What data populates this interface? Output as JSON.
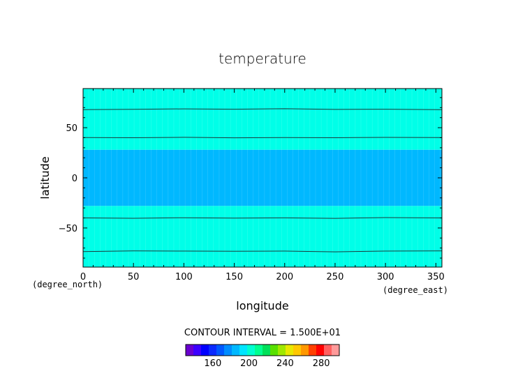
{
  "chart_data": {
    "type": "heatmap",
    "title": "temperature",
    "xlabel": "longitude",
    "ylabel": "latitude",
    "x_unit": "(degree_east)",
    "y_unit": "(degree_north)",
    "xlim": [
      0,
      356
    ],
    "ylim": [
      -89,
      89
    ],
    "x_ticks": [
      0,
      50,
      100,
      150,
      200,
      250,
      300,
      350
    ],
    "y_ticks": [
      -50,
      0,
      50
    ],
    "contour_interval_label": "CONTOUR INTERVAL = 1.500E+01",
    "contour_interval": 15,
    "bands": [
      {
        "lat_min": -89,
        "lat_max": -28,
        "color": "#00ffe8",
        "range": "210-225"
      },
      {
        "lat_min": -28,
        "lat_max": 28,
        "color": "#00b8ff",
        "range": "195-210"
      },
      {
        "lat_min": 28,
        "lat_max": 89,
        "color": "#00ffe8",
        "range": "210-225"
      }
    ],
    "contour_lines": [
      {
        "lat": -73,
        "points": [
          [
            0,
            -73.5
          ],
          [
            50,
            -72.8
          ],
          [
            100,
            -73.0
          ],
          [
            150,
            -73.2
          ],
          [
            200,
            -73.0
          ],
          [
            250,
            -73.8
          ],
          [
            300,
            -73.0
          ],
          [
            356,
            -72.8
          ]
        ]
      },
      {
        "lat": -40,
        "points": [
          [
            0,
            -40.0
          ],
          [
            50,
            -40.3
          ],
          [
            100,
            -39.8
          ],
          [
            150,
            -40.2
          ],
          [
            200,
            -39.9
          ],
          [
            250,
            -40.4
          ],
          [
            300,
            -39.6
          ],
          [
            356,
            -40.0
          ]
        ]
      },
      {
        "lat": 40,
        "points": [
          [
            0,
            40.2
          ],
          [
            50,
            40.0
          ],
          [
            100,
            40.4
          ],
          [
            150,
            39.9
          ],
          [
            200,
            40.2
          ],
          [
            250,
            40.0
          ],
          [
            300,
            40.3
          ],
          [
            356,
            40.1
          ]
        ]
      },
      {
        "lat": 68,
        "points": [
          [
            0,
            68.0
          ],
          [
            50,
            68.3
          ],
          [
            100,
            68.8
          ],
          [
            150,
            68.4
          ],
          [
            200,
            68.9
          ],
          [
            250,
            68.2
          ],
          [
            300,
            68.4
          ],
          [
            356,
            68.0
          ]
        ]
      }
    ],
    "colorbar": {
      "colors": [
        "#6a00d0",
        "#3c00ff",
        "#0000ff",
        "#0a2aff",
        "#0058ff",
        "#008cff",
        "#00b8ff",
        "#00e5ff",
        "#00ffd0",
        "#00ff90",
        "#00e05a",
        "#58e000",
        "#a0e800",
        "#e8e800",
        "#ffc800",
        "#ff9800",
        "#ff4000",
        "#ff0000",
        "#ff6060",
        "#ff9a9a"
      ],
      "tick_values": [
        160,
        200,
        240,
        280
      ],
      "min": 130,
      "max": 300
    }
  }
}
